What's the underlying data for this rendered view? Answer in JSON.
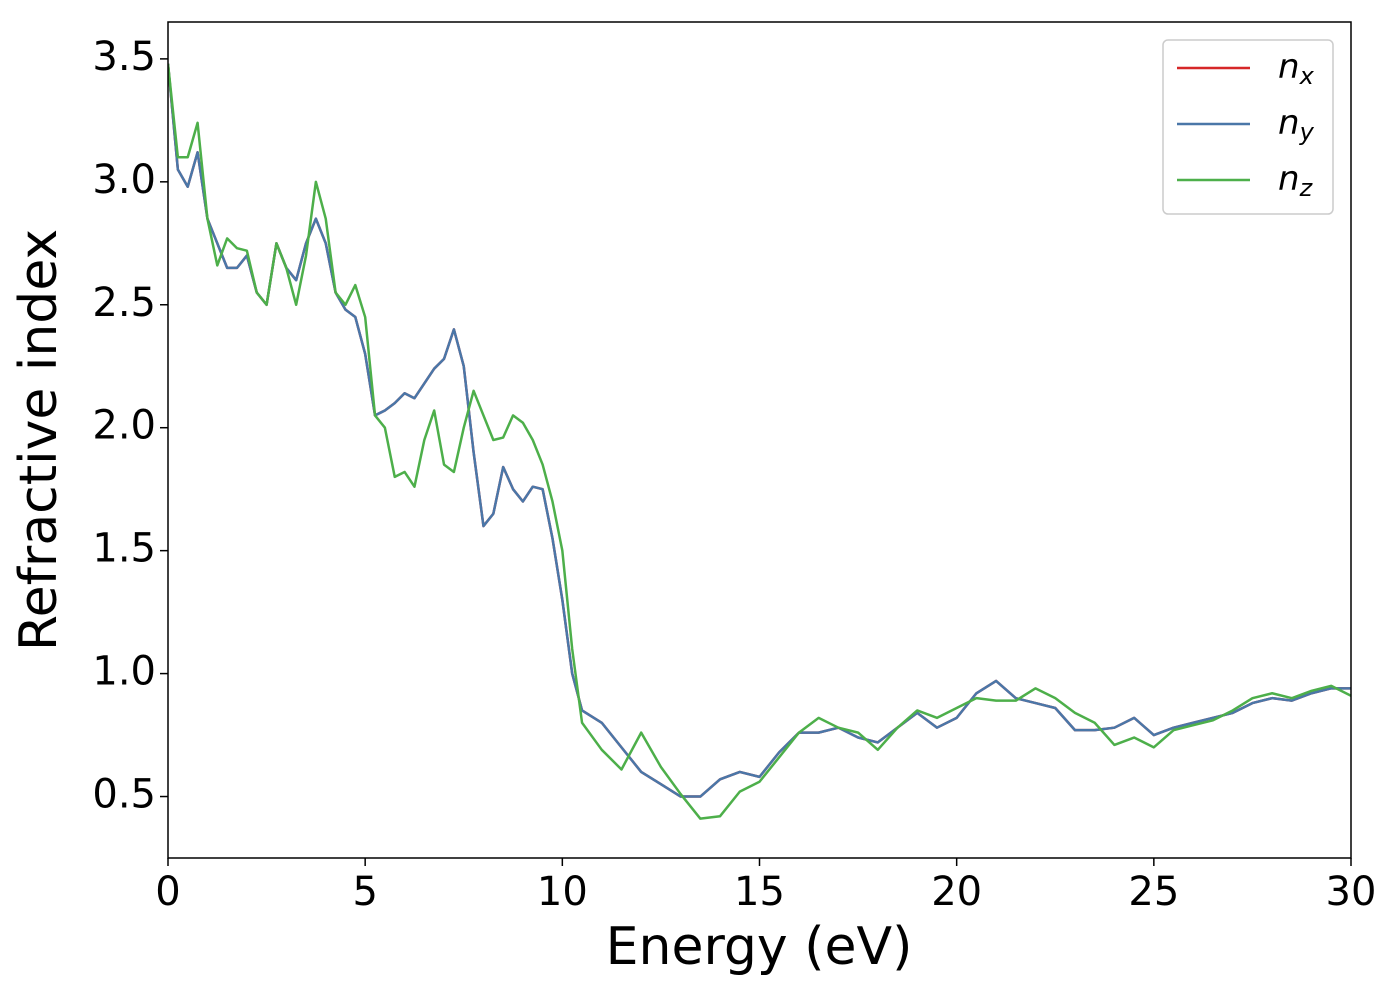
{
  "chart_data": {
    "type": "line",
    "xlabel": "Energy (eV)",
    "ylabel": "Refractive index",
    "x": [
      0,
      0.25,
      0.5,
      0.75,
      1,
      1.25,
      1.5,
      1.75,
      2,
      2.25,
      2.5,
      2.75,
      3,
      3.25,
      3.5,
      3.75,
      4,
      4.25,
      4.5,
      4.75,
      5,
      5.25,
      5.5,
      5.75,
      6,
      6.25,
      6.5,
      6.75,
      7,
      7.25,
      7.5,
      7.75,
      8,
      8.25,
      8.5,
      8.75,
      9,
      9.25,
      9.5,
      9.75,
      10,
      10.25,
      10.5,
      11,
      11.5,
      12,
      12.5,
      13,
      13.5,
      14,
      14.5,
      15,
      15.5,
      16,
      16.5,
      17,
      17.5,
      18,
      18.5,
      19,
      19.5,
      20,
      20.5,
      21,
      21.5,
      22,
      22.5,
      23,
      23.5,
      24,
      24.5,
      25,
      25.5,
      26,
      26.5,
      27,
      27.5,
      28,
      28.5,
      29,
      29.5,
      30
    ],
    "series": [
      {
        "name": "n_x",
        "color": "#d62728",
        "values": [
          3.48,
          3.05,
          2.98,
          3.12,
          2.85,
          2.75,
          2.65,
          2.65,
          2.7,
          2.55,
          2.5,
          2.75,
          2.65,
          2.6,
          2.75,
          2.85,
          2.75,
          2.55,
          2.48,
          2.45,
          2.3,
          2.05,
          2.07,
          2.1,
          2.14,
          2.12,
          2.18,
          2.24,
          2.28,
          2.4,
          2.25,
          1.9,
          1.6,
          1.65,
          1.84,
          1.75,
          1.7,
          1.76,
          1.75,
          1.55,
          1.3,
          1.0,
          0.85,
          0.8,
          0.7,
          0.6,
          0.55,
          0.5,
          0.5,
          0.57,
          0.6,
          0.58,
          0.68,
          0.76,
          0.76,
          0.78,
          0.74,
          0.72,
          0.78,
          0.84,
          0.78,
          0.82,
          0.92,
          0.97,
          0.9,
          0.88,
          0.86,
          0.77,
          0.77,
          0.78,
          0.82,
          0.75,
          0.78,
          0.8,
          0.82,
          0.84,
          0.88,
          0.9,
          0.89,
          0.92,
          0.94,
          0.94
        ]
      },
      {
        "name": "n_y",
        "color": "#4a77a8",
        "values": [
          3.48,
          3.05,
          2.98,
          3.12,
          2.85,
          2.75,
          2.65,
          2.65,
          2.7,
          2.55,
          2.5,
          2.75,
          2.65,
          2.6,
          2.75,
          2.85,
          2.75,
          2.55,
          2.48,
          2.45,
          2.3,
          2.05,
          2.07,
          2.1,
          2.14,
          2.12,
          2.18,
          2.24,
          2.28,
          2.4,
          2.25,
          1.9,
          1.6,
          1.65,
          1.84,
          1.75,
          1.7,
          1.76,
          1.75,
          1.55,
          1.3,
          1.0,
          0.85,
          0.8,
          0.7,
          0.6,
          0.55,
          0.5,
          0.5,
          0.57,
          0.6,
          0.58,
          0.68,
          0.76,
          0.76,
          0.78,
          0.74,
          0.72,
          0.78,
          0.84,
          0.78,
          0.82,
          0.92,
          0.97,
          0.9,
          0.88,
          0.86,
          0.77,
          0.77,
          0.78,
          0.82,
          0.75,
          0.78,
          0.8,
          0.82,
          0.84,
          0.88,
          0.9,
          0.89,
          0.92,
          0.94,
          0.94
        ]
      },
      {
        "name": "n_z",
        "color": "#4daf4a",
        "values": [
          3.48,
          3.1,
          3.1,
          3.24,
          2.85,
          2.66,
          2.77,
          2.73,
          2.72,
          2.55,
          2.5,
          2.75,
          2.65,
          2.5,
          2.7,
          3.0,
          2.85,
          2.55,
          2.5,
          2.58,
          2.45,
          2.05,
          2.0,
          1.8,
          1.82,
          1.76,
          1.95,
          2.07,
          1.85,
          1.82,
          2.0,
          2.15,
          2.05,
          1.95,
          1.96,
          2.05,
          2.02,
          1.95,
          1.85,
          1.7,
          1.5,
          1.1,
          0.8,
          0.69,
          0.61,
          0.76,
          0.62,
          0.51,
          0.41,
          0.42,
          0.52,
          0.56,
          0.66,
          0.76,
          0.82,
          0.78,
          0.76,
          0.69,
          0.78,
          0.85,
          0.82,
          0.86,
          0.9,
          0.89,
          0.89,
          0.94,
          0.9,
          0.84,
          0.8,
          0.71,
          0.74,
          0.7,
          0.77,
          0.79,
          0.81,
          0.85,
          0.9,
          0.92,
          0.9,
          0.93,
          0.95,
          0.91
        ]
      }
    ],
    "xlim": [
      0,
      30
    ],
    "xticks": [
      0,
      5,
      10,
      15,
      20,
      25,
      30
    ],
    "ylim": [
      0.25,
      3.65
    ],
    "yticks": [
      0.5,
      {
        "value": 1,
        "label": "1.0"
      },
      1.5,
      {
        "value": 2,
        "label": "2.0"
      },
      2.5,
      {
        "value": 3,
        "label": "3.0"
      },
      3.5
    ],
    "legend": "upper right"
  }
}
